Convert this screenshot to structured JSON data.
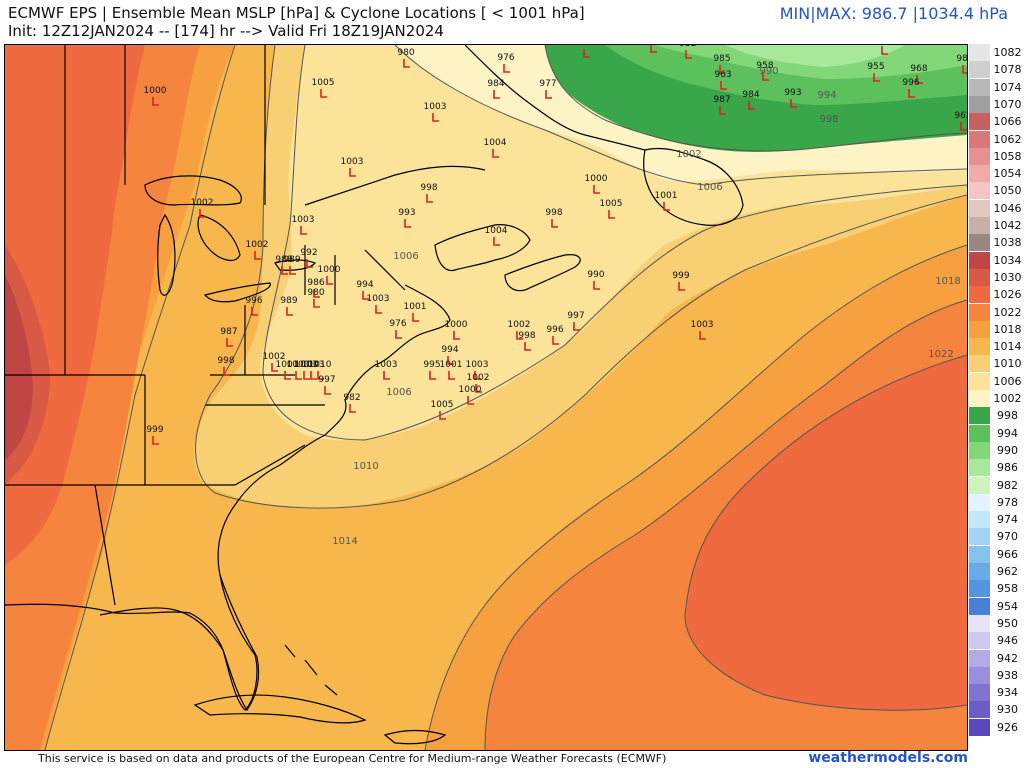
{
  "header": {
    "title": "ECMWF EPS | Ensemble Mean MSLP [hPa] & Cyclone Locations [ < 1001 hPa]",
    "subtitle": "Init: 12Z12JAN2024 -- [174] hr --> Valid Fri 18Z19JAN2024",
    "minmax": "MIN|MAX: 986.7 |1034.4 hPa"
  },
  "footer": {
    "credit": "This service is based on data and products of the European Centre for Medium-range Weather Forecasts (ECMWF)",
    "brand": "weathermodels.com"
  },
  "colors": {
    "cyclone_marker": "#e02020",
    "contour_line": "#555555",
    "land_outline": "#000000"
  },
  "colorbar": {
    "labels": [
      "1082",
      "1078",
      "1074",
      "1070",
      "1066",
      "1062",
      "1058",
      "1054",
      "1050",
      "1046",
      "1042",
      "1038",
      "1034",
      "1030",
      "1026",
      "1022",
      "1018",
      "1014",
      "1010",
      "1006",
      "1002",
      "998",
      "994",
      "990",
      "986",
      "982",
      "978",
      "974",
      "970",
      "966",
      "962",
      "958",
      "954",
      "950",
      "946",
      "942",
      "938",
      "934",
      "930",
      "926"
    ],
    "colors": [
      "#e6e6e6",
      "#cfcfcf",
      "#b8b8b8",
      "#a0a0a0",
      "#c86060",
      "#d87878",
      "#e89090",
      "#f0aaaa",
      "#f5c4c4",
      "#e0c8c0",
      "#c8b0a8",
      "#9a8880",
      "#c04545",
      "#d85a45",
      "#f06a40",
      "#f5853e",
      "#f6a040",
      "#f7b74d",
      "#f9cf74",
      "#fbe39a",
      "#fdf3c4",
      "#3aa64a",
      "#5cc05c",
      "#82d878",
      "#a8e89a",
      "#cdf4bc",
      "#e2f4ff",
      "#c4e6fa",
      "#a4d4f4",
      "#86c2ee",
      "#6aaae8",
      "#5494e0",
      "#4880d8",
      "#e8e4f8",
      "#cfc8f0",
      "#b4aae6",
      "#9a8ede",
      "#8272d4",
      "#6c5cc8",
      "#5a48bc"
    ]
  },
  "map": {
    "isobar_labels": [
      {
        "text": "990"
      },
      {
        "text": "994"
      },
      {
        "text": "998"
      },
      {
        "text": "1002"
      },
      {
        "text": "1006"
      },
      {
        "text": "1006"
      },
      {
        "text": "1006"
      },
      {
        "text": "1010"
      },
      {
        "text": "1014"
      },
      {
        "text": "1018"
      },
      {
        "text": "1022"
      }
    ],
    "cyclones": [
      {
        "v": "980"
      },
      {
        "v": "976"
      },
      {
        "v": "990"
      },
      {
        "v": "970"
      },
      {
        "v": "952"
      },
      {
        "v": "951"
      },
      {
        "v": "989"
      },
      {
        "v": "984"
      },
      {
        "v": "977"
      },
      {
        "v": "985"
      },
      {
        "v": "963"
      },
      {
        "v": "958"
      },
      {
        "v": "955"
      },
      {
        "v": "968"
      },
      {
        "v": "996"
      },
      {
        "v": "962"
      },
      {
        "v": "987"
      },
      {
        "v": "984"
      },
      {
        "v": "993"
      },
      {
        "v": "1005"
      },
      {
        "v": "1000"
      },
      {
        "v": "1003"
      },
      {
        "v": "1003"
      },
      {
        "v": "1004"
      },
      {
        "v": "998"
      },
      {
        "v": "993"
      },
      {
        "v": "1000"
      },
      {
        "v": "1001"
      },
      {
        "v": "1005"
      },
      {
        "v": "998"
      },
      {
        "v": "1002"
      },
      {
        "v": "1003"
      },
      {
        "v": "1002"
      },
      {
        "v": "992"
      },
      {
        "v": "988"
      },
      {
        "v": "989"
      },
      {
        "v": "1000"
      },
      {
        "v": "986"
      },
      {
        "v": "980"
      },
      {
        "v": "994"
      },
      {
        "v": "1003"
      },
      {
        "v": "1004"
      },
      {
        "v": "996"
      },
      {
        "v": "989"
      },
      {
        "v": "990"
      },
      {
        "v": "999"
      },
      {
        "v": "987"
      },
      {
        "v": "1001"
      },
      {
        "v": "976"
      },
      {
        "v": "1000"
      },
      {
        "v": "1002"
      },
      {
        "v": "998"
      },
      {
        "v": "996"
      },
      {
        "v": "997"
      },
      {
        "v": "1003"
      },
      {
        "v": "994"
      },
      {
        "v": "998"
      },
      {
        "v": "1002"
      },
      {
        "v": "1001"
      },
      {
        "v": "1000"
      },
      {
        "v": "1003"
      },
      {
        "v": "1003"
      },
      {
        "v": "1010"
      },
      {
        "v": "997"
      },
      {
        "v": "982"
      },
      {
        "v": "1003"
      },
      {
        "v": "995"
      },
      {
        "v": "1001"
      },
      {
        "v": "1003"
      },
      {
        "v": "1002"
      },
      {
        "v": "1000"
      },
      {
        "v": "1005"
      },
      {
        "v": "999"
      }
    ]
  }
}
